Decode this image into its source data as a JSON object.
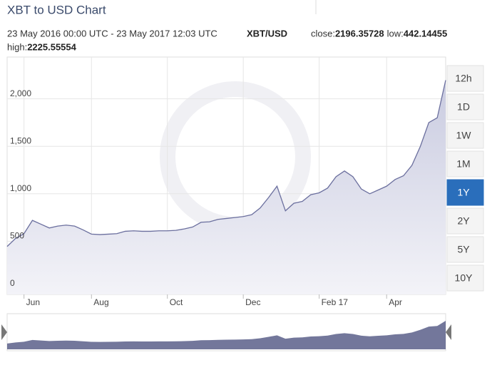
{
  "chart_data": {
    "type": "area",
    "title": "XBT to USD Chart",
    "subtitle": "23 May 2016 00:00 UTC - 23 May 2017 12:03 UTC",
    "pair": "XBT/USD",
    "stats": [
      {
        "label": "close:",
        "value": 2196.35728
      },
      {
        "label": "low:",
        "value": 442.14455
      },
      {
        "label": "high:",
        "value": 2225.55554
      }
    ],
    "categories": [
      null,
      null,
      "Jun",
      null,
      null,
      null,
      null,
      null,
      null,
      null,
      "Aug",
      null,
      null,
      null,
      null,
      null,
      null,
      null,
      null,
      "Oct",
      null,
      null,
      null,
      null,
      null,
      null,
      null,
      null,
      "Dec",
      null,
      null,
      null,
      null,
      null,
      null,
      null,
      null,
      "Feb 17",
      null,
      null,
      null,
      null,
      null,
      null,
      null,
      "Apr",
      null,
      null,
      null,
      null,
      null,
      null,
      null
    ],
    "series": [
      {
        "name": "XBT/USD",
        "color": "#6b6f9e",
        "values": [
          445,
          530,
          580,
          720,
          680,
          640,
          660,
          670,
          660,
          620,
          575,
          570,
          575,
          580,
          605,
          610,
          605,
          605,
          610,
          610,
          615,
          630,
          650,
          700,
          705,
          730,
          740,
          750,
          760,
          780,
          850,
          960,
          1080,
          820,
          900,
          920,
          990,
          1010,
          1060,
          1180,
          1240,
          1180,
          1050,
          1000,
          1040,
          1080,
          1150,
          1190,
          1300,
          1500,
          1750,
          1800,
          2196
        ]
      }
    ],
    "ylim": [
      -60,
      2440
    ],
    "yticks": [
      0,
      500,
      {
        "value": 1000,
        "label": "1,000"
      },
      {
        "value": 1500,
        "label": "1,500"
      },
      {
        "value": 2000,
        "label": "2,000"
      }
    ],
    "grid": true,
    "ranges": [
      "12h",
      "1D",
      "1W",
      "1M",
      "1Y",
      "2Y",
      "5Y",
      "10Y"
    ],
    "selected_range": 4
  }
}
